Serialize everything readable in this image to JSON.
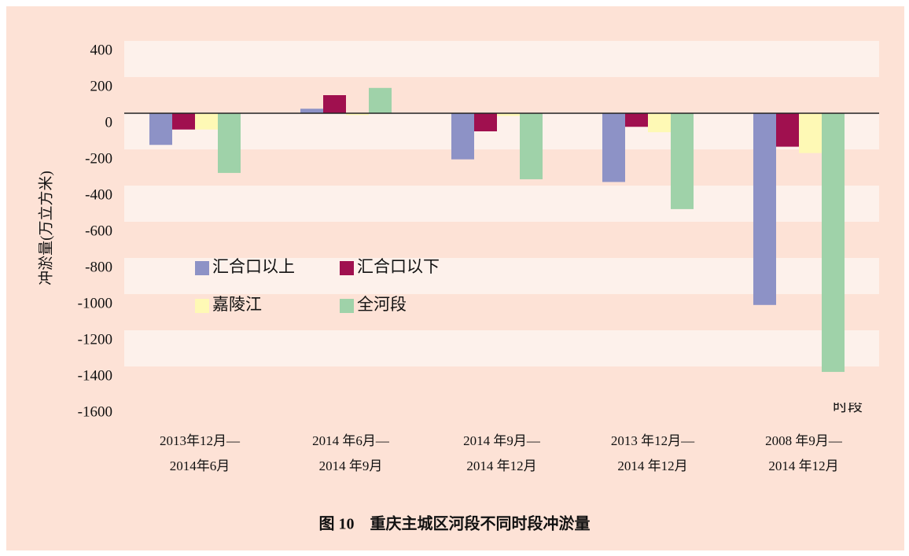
{
  "chart_data": {
    "type": "bar",
    "title": "图 10　重庆主城区河段不同时段冲淤量",
    "y_label": "冲淤量(万立方米)",
    "x_label": "时段",
    "categories": [
      [
        "2013年12月—",
        "2014年6月"
      ],
      [
        "2014 年6月—",
        "2014 年9月"
      ],
      [
        "2014 年9月—",
        "2014 年12月"
      ],
      [
        "2013 年12月—",
        "2014 年12月"
      ],
      [
        "2008 年9月—",
        "2014 年12月"
      ]
    ],
    "series": [
      {
        "name": "汇合口以上",
        "color": "#8d92c6",
        "values": [
          -175,
          25,
          -255,
          -380,
          -1060
        ]
      },
      {
        "name": "汇合口以下",
        "color": "#a0104f",
        "values": [
          -90,
          100,
          -100,
          -75,
          -185
        ]
      },
      {
        "name": "嘉陵江",
        "color": "#fef9b5",
        "values": [
          -90,
          -10,
          -15,
          -105,
          -220
        ]
      },
      {
        "name": "全河段",
        "color": "#9fd2a9",
        "values": [
          -330,
          140,
          -365,
          -530,
          -1430
        ]
      }
    ],
    "ylim": [
      -1600,
      400
    ],
    "yticks": [
      400,
      200,
      0,
      -200,
      -400,
      -600,
      -800,
      -1000,
      -1200,
      -1400,
      -1600
    ],
    "bands": true
  }
}
